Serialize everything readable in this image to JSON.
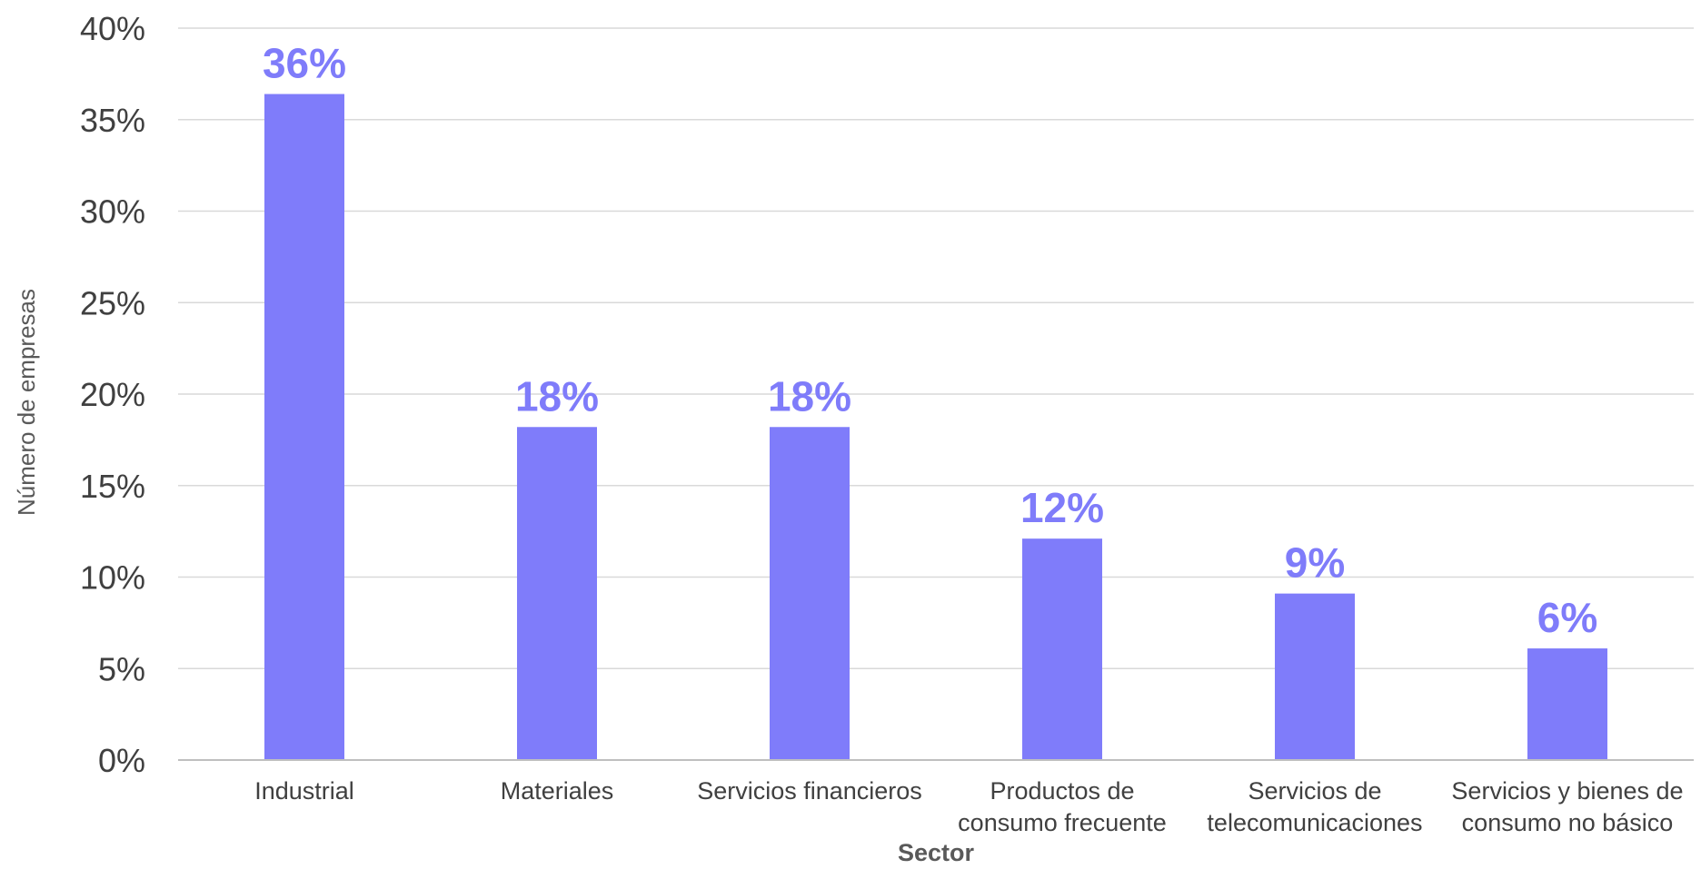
{
  "chart_data": {
    "type": "bar",
    "categories": [
      [
        "Industrial"
      ],
      [
        "Materiales"
      ],
      [
        "Servicios financieros"
      ],
      [
        "Productos de",
        "consumo frecuente"
      ],
      [
        "Servicios de",
        "telecomunicaciones"
      ],
      [
        "Servicios y bienes de",
        "consumo no básico"
      ]
    ],
    "values": [
      36.4,
      18.2,
      18.2,
      12.1,
      9.1,
      6.1
    ],
    "value_labels": [
      "36%",
      "18%",
      "18%",
      "12%",
      "9%",
      "6%"
    ],
    "y_ticks": [
      "0%",
      "5%",
      "10%",
      "15%",
      "20%",
      "25%",
      "30%",
      "35%",
      "40%"
    ],
    "ylim": [
      0,
      40
    ],
    "xlabel": "Sector",
    "ylabel": "Número de empresas",
    "grid": true,
    "legend": "none",
    "colors": {
      "bar": "#7f7cfa",
      "label": "#7f7cfa",
      "grid": "#d9d9d9",
      "axis": "#bfbfbf"
    }
  }
}
